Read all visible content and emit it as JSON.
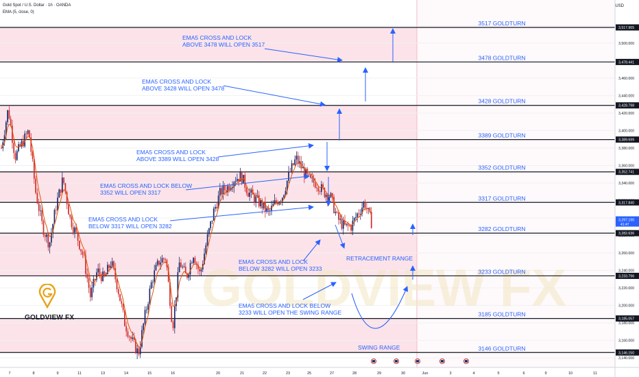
{
  "header": {
    "title": "Gold Spot / U.S. Dollar · 1h · OANDA",
    "indicator": "EMA (5, close, 0)",
    "currency": "USD"
  },
  "brand": {
    "logo_text": "GOLDVIEW FX",
    "watermark": "GOLDVIEW FX"
  },
  "colors": {
    "band_pink": "#fbe3e9",
    "annotation_blue": "#2962ff",
    "level_line": "#131722",
    "candle_up": "#1b2a6b",
    "candle_down": "#d02f2f",
    "ema": "#e65100",
    "logo_gold": "#e8a317"
  },
  "chart_data": {
    "type": "candlestick",
    "instrument": "Gold Spot / U.S. Dollar",
    "timeframe": "1h",
    "ylim": [
      3140,
      3530
    ],
    "y_ticks": [
      3140,
      3160,
      3180,
      3200,
      3220,
      3240,
      3260,
      3280,
      3300,
      3320,
      3340,
      3360,
      3380,
      3400,
      3420,
      3440,
      3460,
      3480,
      3500,
      3520
    ],
    "x_ticks": [
      "7",
      "8",
      "9",
      "11",
      "13",
      "14",
      "15",
      "16",
      "20",
      "21",
      "22",
      "23",
      "25",
      "27",
      "28",
      "29",
      "30",
      "Jun",
      "3",
      "4",
      "5",
      "6",
      "9",
      "10",
      "11"
    ],
    "current_price": "3,297.190",
    "countdown": "41:47",
    "levels": [
      {
        "value": 3517.965,
        "label": "3517 GOLDTURN",
        "axis_label": "3,517.965"
      },
      {
        "value": 3478.441,
        "label": "3478 GOLDTURN",
        "axis_label": "3,478.441"
      },
      {
        "value": 3428.798,
        "label": "3428 GOLDTURN",
        "axis_label": "3,428.798"
      },
      {
        "value": 3389.699,
        "label": "3389 GOLDTURN",
        "axis_label": "3,389.699"
      },
      {
        "value": 3352.741,
        "label": "3352 GOLDTURN",
        "axis_label": "3,352.741"
      },
      {
        "value": 3317.84,
        "label": "3317 GOLDTURN",
        "axis_label": "3,317.840"
      },
      {
        "value": 3282.636,
        "label": "3282 GOLDTURN",
        "axis_label": "3,282.636"
      },
      {
        "value": 3233.796,
        "label": "3233 GOLDTURN",
        "axis_label": "3,233.796"
      },
      {
        "value": 3185.057,
        "label": "3185 GOLDTURN",
        "axis_label": "3,185.057"
      },
      {
        "value": 3146.15,
        "label": "3146 GOLDTURN",
        "axis_label": "3,146.150"
      }
    ],
    "bands": [
      [
        3478.441,
        3517.965
      ],
      [
        3389.699,
        3428.798
      ],
      [
        3317.84,
        3352.741
      ],
      [
        3233.796,
        3282.636
      ],
      [
        3146.15,
        3185.057
      ]
    ],
    "annotations": [
      {
        "lines": [
          "EMA5 CROSS AND LOCK",
          "ABOVE 3478 WILL OPEN 3517"
        ]
      },
      {
        "lines": [
          "EMA5 CROSS AND LOCK",
          "ABOVE 3428 WILL OPEN 3478"
        ]
      },
      {
        "lines": [
          "EMA5 CROSS AND LOCK",
          "ABOVE 3389 WILL OPEN 3428"
        ]
      },
      {
        "lines": [
          "EMA5 CROSS AND LOCK BELOW",
          "3352 WILL OPEN 3317"
        ]
      },
      {
        "lines": [
          "EMA5 CROSS AND LOCK",
          "BELOW 3317 WILL OPEN 3282"
        ]
      },
      {
        "lines": [
          "EMA5 CROSS AND LOCK",
          "BELOW 3282 WILL OPEN 3233"
        ]
      },
      {
        "lines": [
          "EMA5 CROSS AND LOCK BELOW",
          "3233 WILL OPEN THE SWING RANGE"
        ]
      },
      {
        "lines": [
          "RETRACEMENT RANGE"
        ]
      },
      {
        "lines": [
          "SWING RANGE"
        ]
      }
    ],
    "price_path": [
      3380,
      3425,
      3370,
      3385,
      3400,
      3330,
      3290,
      3270,
      3315,
      3345,
      3300,
      3280,
      3255,
      3210,
      3240,
      3230,
      3250,
      3220,
      3180,
      3160,
      3145,
      3190,
      3230,
      3250,
      3255,
      3175,
      3250,
      3232,
      3260,
      3235,
      3275,
      3308,
      3330,
      3335,
      3345,
      3348,
      3330,
      3322,
      3315,
      3305,
      3318,
      3325,
      3350,
      3368,
      3355,
      3342,
      3340,
      3330,
      3325,
      3300,
      3290,
      3290,
      3305,
      3318,
      3295
    ]
  }
}
